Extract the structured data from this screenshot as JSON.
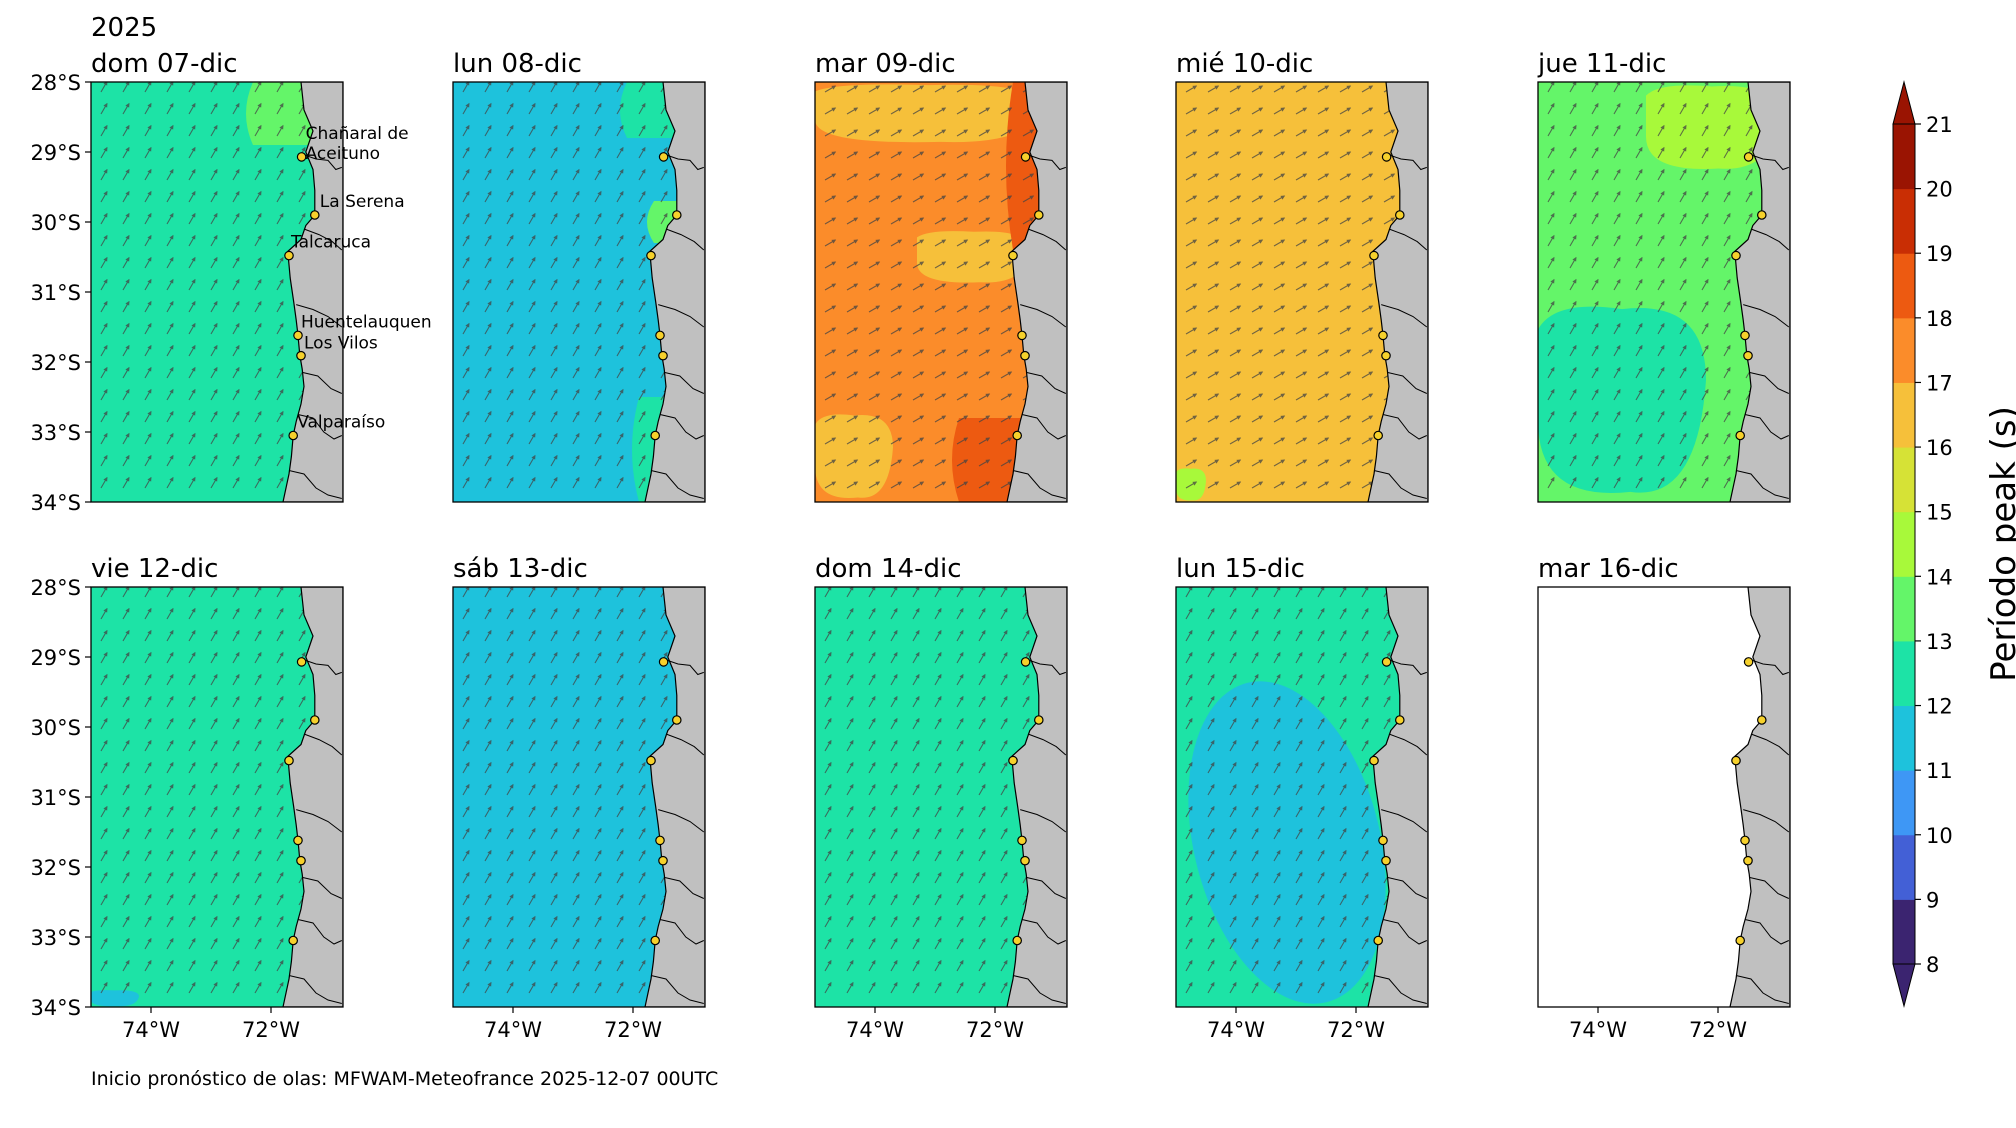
{
  "figure": {
    "year": "2025",
    "footer": "Inicio pronóstico de olas: MFWAM-Meteofrance 2025-12-07 00UTC"
  },
  "chart_data": {
    "type": "heatmap",
    "title": "",
    "colorbar": {
      "label": "Período peak (s)",
      "ticks": [
        "8",
        "9",
        "10",
        "11",
        "12",
        "13",
        "14",
        "15",
        "16",
        "17",
        "18",
        "19",
        "20",
        "21"
      ],
      "levels": [
        {
          "min": 8,
          "max": 9,
          "color": "#3b2470"
        },
        {
          "min": 9,
          "max": 10,
          "color": "#4360d6"
        },
        {
          "min": 10,
          "max": 11,
          "color": "#3e97f5"
        },
        {
          "min": 11,
          "max": 12,
          "color": "#1ec2dc"
        },
        {
          "min": 12,
          "max": 13,
          "color": "#1de3a6"
        },
        {
          "min": 13,
          "max": 14,
          "color": "#64f569"
        },
        {
          "min": 14,
          "max": 15,
          "color": "#a8f93a"
        },
        {
          "min": 15,
          "max": 16,
          "color": "#d6e236"
        },
        {
          "min": 16,
          "max": 17,
          "color": "#f6c03a"
        },
        {
          "min": 17,
          "max": 18,
          "color": "#fb8c2a"
        },
        {
          "min": 18,
          "max": 19,
          "color": "#ed5a11"
        },
        {
          "min": 19,
          "max": 20,
          "color": "#c92e04"
        },
        {
          "min": 20,
          "max": 21,
          "color": "#9a1402"
        }
      ],
      "extend": "both"
    },
    "y_ticks": [
      "28°S",
      "29°S",
      "30°S",
      "31°S",
      "32°S",
      "33°S",
      "34°S"
    ],
    "x_ticks": [
      "74°W",
      "72°W"
    ],
    "lat_range": [
      -34,
      -28
    ],
    "lon_range": [
      -75,
      -70.8
    ],
    "land_color": "#c0c0c0",
    "stations": [
      {
        "name": "Chañaral de\nAceituno",
        "lat": -29.07,
        "lon": -71.49
      },
      {
        "name": "La Serena",
        "lat": -29.9,
        "lon": -71.27
      },
      {
        "name": "Talcaruca",
        "lat": -30.48,
        "lon": -71.7
      },
      {
        "name": "Huentelauquen",
        "lat": -31.62,
        "lon": -71.55
      },
      {
        "name": "Los Vilos",
        "lat": -31.91,
        "lon": -71.5
      },
      {
        "name": "Valparaíso",
        "lat": -33.05,
        "lon": -71.63
      }
    ],
    "panels": [
      {
        "title": "dom 07-dic",
        "base_period": 12.5,
        "features": [
          {
            "kind": "strip",
            "lat_min": -28.9,
            "lat_max": -28,
            "lon_min": -72.3,
            "period": 13.5
          }
        ]
      },
      {
        "title": "lun 08-dic",
        "base_period": 11.5,
        "features": [
          {
            "kind": "strip",
            "lat_min": -28.8,
            "lat_max": -28,
            "lon_min": -72.1,
            "period": 12.5
          },
          {
            "kind": "strip",
            "lat_min": -30.3,
            "lat_max": -29.7,
            "lon_min": -71.65,
            "period": 13.5
          },
          {
            "kind": "strip",
            "lat_min": -34,
            "lat_max": -32.5,
            "lon_min": -71.9,
            "period": 12.5
          }
        ]
      },
      {
        "title": "mar 09-dic",
        "base_period": 17.5,
        "features": [
          {
            "kind": "blob",
            "lat_min": -28.9,
            "lat_max": -28,
            "lon_min": -75,
            "lon_max": -71.2,
            "period": 16.5
          },
          {
            "kind": "blob",
            "lat_min": -30.9,
            "lat_max": -30.1,
            "lon_min": -73.3,
            "lon_max": -71.4,
            "period": 16.5
          },
          {
            "kind": "blob",
            "lat_min": -34,
            "lat_max": -32.7,
            "lon_min": -75,
            "lon_max": -73.7,
            "period": 16.5
          },
          {
            "kind": "strip",
            "lat_min": -34,
            "lat_max": -32.8,
            "lon_min": -72.6,
            "period": 18.5
          },
          {
            "kind": "strip",
            "lat_min": -30.4,
            "lat_max": -28,
            "lon_min": -71.7,
            "period": 18.5
          }
        ]
      },
      {
        "title": "mié 10-dic",
        "base_period": 16.5,
        "features": [
          {
            "kind": "blob",
            "lat_min": -34,
            "lat_max": -33.5,
            "lon_min": -75,
            "lon_max": -74.5,
            "period": 14.5
          }
        ]
      },
      {
        "title": "jue 11-dic",
        "base_period": 13.5,
        "features": [
          {
            "kind": "blob",
            "lat_min": -29.3,
            "lat_max": -28,
            "lon_min": -73.2,
            "lon_max": -71.0,
            "period": 14.5
          },
          {
            "kind": "blob",
            "lat_min": -34,
            "lat_max": -31.1,
            "lon_min": -75,
            "lon_max": -72.2,
            "period": 12.5
          }
        ]
      },
      {
        "title": "vie 12-dic",
        "base_period": 12.5,
        "features": [
          {
            "kind": "blob",
            "lat_min": -34,
            "lat_max": -33.75,
            "lon_min": -75,
            "lon_max": -74.2,
            "period": 11.5
          }
        ]
      },
      {
        "title": "sáb 13-dic",
        "base_period": 11.5,
        "features": []
      },
      {
        "title": "dom 14-dic",
        "base_period": 12.5,
        "features": []
      },
      {
        "title": "lun 15-dic",
        "base_period": 12.5,
        "features": [
          {
            "kind": "ellipse",
            "lat_min": -34,
            "lat_max": -29.3,
            "lon_min": -74.7,
            "lon_max": -71.6,
            "period": 11.5
          }
        ]
      },
      {
        "title": "mar 16-dic",
        "base_period": null,
        "features": []
      }
    ]
  }
}
